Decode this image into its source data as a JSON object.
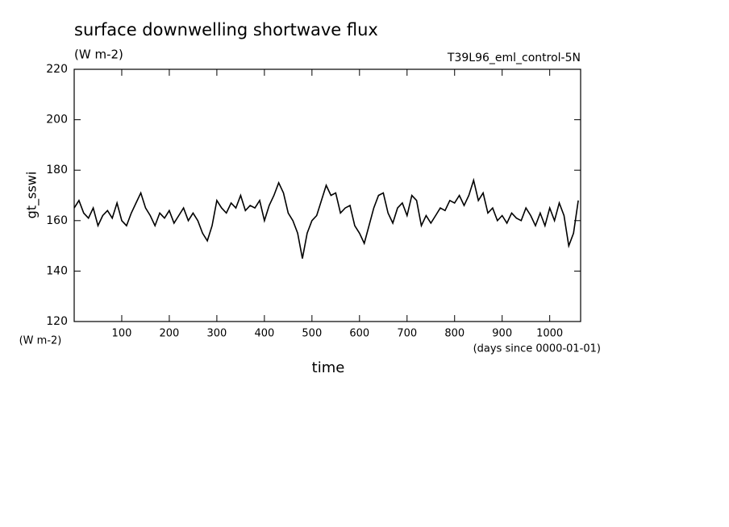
{
  "chart_data": {
    "type": "line",
    "title": "surface downwelling shortwave flux",
    "subtitle": "(W m-2)",
    "annotation": "T39L96_eml_control-5N",
    "ylabel": "gt_sswi",
    "y_unit": "(W m-2)",
    "x_unit": "(days since 0000-01-01)",
    "xlabel": "time",
    "color": "#000000",
    "x": [
      0,
      10,
      20,
      30,
      40,
      50,
      60,
      70,
      80,
      90,
      100,
      110,
      120,
      130,
      140,
      150,
      160,
      170,
      180,
      190,
      200,
      210,
      220,
      230,
      240,
      250,
      260,
      270,
      280,
      290,
      300,
      310,
      320,
      330,
      340,
      350,
      360,
      370,
      380,
      390,
      400,
      410,
      420,
      430,
      440,
      450,
      460,
      470,
      480,
      490,
      500,
      510,
      520,
      530,
      540,
      550,
      560,
      570,
      580,
      590,
      600,
      610,
      620,
      630,
      640,
      650,
      660,
      670,
      680,
      690,
      700,
      710,
      720,
      730,
      740,
      750,
      760,
      770,
      780,
      790,
      800,
      810,
      820,
      830,
      840,
      850,
      860,
      870,
      880,
      890,
      900,
      910,
      920,
      930,
      940,
      950,
      960,
      970,
      980,
      990,
      1000,
      1010,
      1020,
      1030,
      1040,
      1050,
      1060
    ],
    "values": [
      165,
      168,
      163,
      161,
      165,
      158,
      162,
      164,
      161,
      167,
      160,
      158,
      163,
      167,
      171,
      165,
      162,
      158,
      163,
      161,
      164,
      159,
      162,
      165,
      160,
      163,
      160,
      155,
      152,
      158,
      168,
      165,
      163,
      167,
      165,
      170,
      164,
      166,
      165,
      168,
      160,
      166,
      170,
      175,
      171,
      163,
      160,
      155,
      145,
      155,
      160,
      162,
      168,
      174,
      170,
      171,
      163,
      165,
      166,
      158,
      155,
      151,
      158,
      165,
      170,
      171,
      163,
      159,
      165,
      167,
      162,
      170,
      168,
      158,
      162,
      159,
      162,
      165,
      164,
      168,
      167,
      170,
      166,
      170,
      176,
      168,
      171,
      163,
      165,
      160,
      162,
      159,
      163,
      161,
      160,
      165,
      162,
      158,
      163,
      158,
      165,
      160,
      167,
      162,
      150,
      155,
      168
    ],
    "xlim": [
      0,
      1065
    ],
    "ylim": [
      120,
      220
    ],
    "xticks": [
      100,
      200,
      300,
      400,
      500,
      600,
      700,
      800,
      900,
      1000
    ],
    "yticks": [
      120,
      140,
      160,
      180,
      200,
      220
    ]
  }
}
